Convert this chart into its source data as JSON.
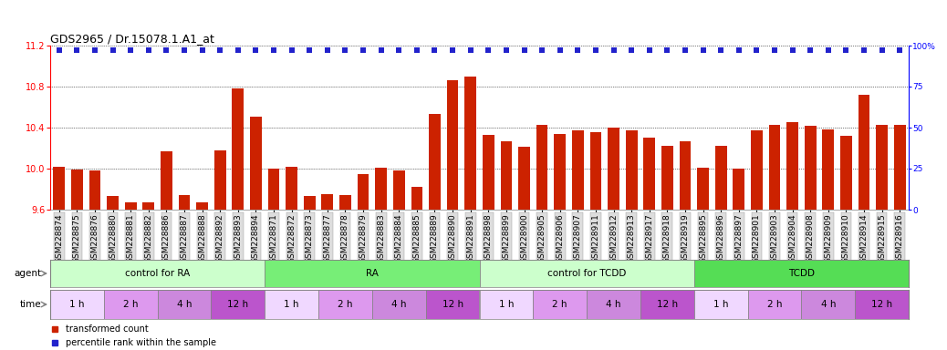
{
  "title": "GDS2965 / Dr.15078.1.A1_at",
  "samples": [
    "GSM228874",
    "GSM228875",
    "GSM228876",
    "GSM228880",
    "GSM228881",
    "GSM228882",
    "GSM228886",
    "GSM228887",
    "GSM228888",
    "GSM228892",
    "GSM228893",
    "GSM228894",
    "GSM228871",
    "GSM228872",
    "GSM228873",
    "GSM228877",
    "GSM228878",
    "GSM228879",
    "GSM228883",
    "GSM228884",
    "GSM228885",
    "GSM228889",
    "GSM228890",
    "GSM228891",
    "GSM228898",
    "GSM228899",
    "GSM228900",
    "GSM228905",
    "GSM228906",
    "GSM228907",
    "GSM228911",
    "GSM228912",
    "GSM228913",
    "GSM228917",
    "GSM228918",
    "GSM228919",
    "GSM228895",
    "GSM228896",
    "GSM228897",
    "GSM228901",
    "GSM228903",
    "GSM228904",
    "GSM228908",
    "GSM228909",
    "GSM228910",
    "GSM228914",
    "GSM228915",
    "GSM228916"
  ],
  "bar_values": [
    10.02,
    9.99,
    9.98,
    9.73,
    9.67,
    9.67,
    10.17,
    9.74,
    9.67,
    10.18,
    10.78,
    10.51,
    10.0,
    10.02,
    9.73,
    9.75,
    9.74,
    9.95,
    10.01,
    9.98,
    9.82,
    10.53,
    10.86,
    10.9,
    10.33,
    10.27,
    10.21,
    10.43,
    10.34,
    10.37,
    10.36,
    10.4,
    10.37,
    10.3,
    10.22,
    10.27,
    10.01,
    10.22,
    10.0,
    10.37,
    10.43,
    10.45,
    10.42,
    10.38,
    10.32,
    10.72,
    10.43,
    10.43
  ],
  "percentile_values": [
    97,
    97,
    97,
    97,
    97,
    97,
    97,
    97,
    97,
    97,
    97,
    97,
    97,
    97,
    97,
    97,
    97,
    97,
    97,
    97,
    97,
    97,
    97,
    97,
    97,
    97,
    97,
    97,
    97,
    97,
    97,
    97,
    97,
    97,
    97,
    97,
    97,
    97,
    97,
    97,
    97,
    97,
    97,
    97,
    97,
    97,
    97,
    97
  ],
  "ylim": [
    9.6,
    11.2
  ],
  "yticks": [
    9.6,
    10.0,
    10.4,
    10.8,
    11.2
  ],
  "right_ylim": [
    0,
    100
  ],
  "right_yticks": [
    0,
    25,
    50,
    75,
    100
  ],
  "right_yticklabels": [
    "0",
    "25",
    "50",
    "75",
    "100%"
  ],
  "bar_color": "#CC2200",
  "dot_color": "#2222CC",
  "agent_groups": [
    {
      "label": "control for RA",
      "start": 0,
      "end": 12,
      "color": "#CCFFCC"
    },
    {
      "label": "RA",
      "start": 12,
      "end": 24,
      "color": "#77EE77"
    },
    {
      "label": "control for TCDD",
      "start": 24,
      "end": 36,
      "color": "#CCFFCC"
    },
    {
      "label": "TCDD",
      "start": 36,
      "end": 48,
      "color": "#55DD55"
    }
  ],
  "time_groups": [
    {
      "label": "1 h",
      "start": 0,
      "end": 3,
      "color": "#F0D8FF"
    },
    {
      "label": "2 h",
      "start": 3,
      "end": 6,
      "color": "#DD99EE"
    },
    {
      "label": "4 h",
      "start": 6,
      "end": 9,
      "color": "#CC88DD"
    },
    {
      "label": "12 h",
      "start": 9,
      "end": 12,
      "color": "#BB55CC"
    },
    {
      "label": "1 h",
      "start": 12,
      "end": 15,
      "color": "#F0D8FF"
    },
    {
      "label": "2 h",
      "start": 15,
      "end": 18,
      "color": "#DD99EE"
    },
    {
      "label": "4 h",
      "start": 18,
      "end": 21,
      "color": "#CC88DD"
    },
    {
      "label": "12 h",
      "start": 21,
      "end": 24,
      "color": "#BB55CC"
    },
    {
      "label": "1 h",
      "start": 24,
      "end": 27,
      "color": "#F0D8FF"
    },
    {
      "label": "2 h",
      "start": 27,
      "end": 30,
      "color": "#DD99EE"
    },
    {
      "label": "4 h",
      "start": 30,
      "end": 33,
      "color": "#CC88DD"
    },
    {
      "label": "12 h",
      "start": 33,
      "end": 36,
      "color": "#BB55CC"
    },
    {
      "label": "1 h",
      "start": 36,
      "end": 39,
      "color": "#F0D8FF"
    },
    {
      "label": "2 h",
      "start": 39,
      "end": 42,
      "color": "#DD99EE"
    },
    {
      "label": "4 h",
      "start": 42,
      "end": 45,
      "color": "#CC88DD"
    },
    {
      "label": "12 h",
      "start": 45,
      "end": 48,
      "color": "#BB55CC"
    }
  ],
  "legend_bar_label": "transformed count",
  "legend_dot_label": "percentile rank within the sample",
  "agent_label": "agent",
  "time_label": "time",
  "title_fontsize": 9,
  "tick_fontsize": 6.5,
  "annot_fontsize": 7.5,
  "legend_fontsize": 7
}
